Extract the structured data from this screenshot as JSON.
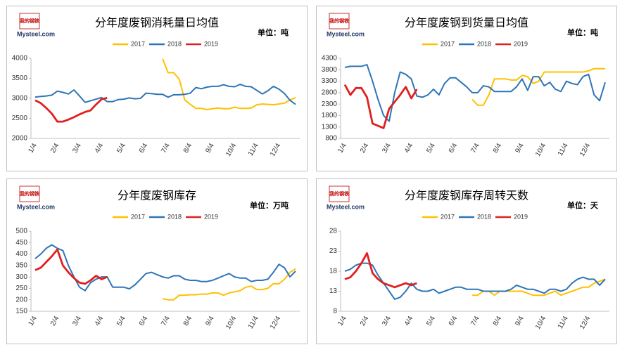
{
  "chart_data": [
    {
      "type": "line",
      "title": "分年度废钢消耗量日均值",
      "unit": "单位：吨",
      "logo_cn": "我的钢铁",
      "logo": "Mysteel.com",
      "categories": [
        "1/4",
        null,
        null,
        null,
        "2/4",
        null,
        null,
        null,
        "3/4",
        null,
        null,
        null,
        "4/4",
        null,
        null,
        null,
        "5/4",
        null,
        null,
        null,
        "6/4",
        null,
        null,
        null,
        "7/4",
        null,
        null,
        null,
        "8/4",
        null,
        null,
        null,
        "9/4",
        null,
        null,
        null,
        "10/4",
        null,
        null,
        null,
        "11/4",
        null,
        null,
        null,
        "12/4",
        null,
        null,
        null
      ],
      "ylim": [
        2000,
        4000
      ],
      "yticks": [
        2000,
        2500,
        3000,
        3500,
        4000
      ],
      "grid": false,
      "series": [
        {
          "name": "2017",
          "color": "#ffc000",
          "values": [
            null,
            null,
            null,
            null,
            null,
            null,
            null,
            null,
            null,
            null,
            null,
            null,
            null,
            null,
            null,
            null,
            null,
            null,
            null,
            null,
            null,
            null,
            null,
            3990,
            3640,
            3640,
            3480,
            2960,
            2850,
            2750,
            2750,
            2720,
            2740,
            2760,
            2740,
            2740,
            2780,
            2750,
            2750,
            2760,
            2840,
            2860,
            2850,
            2840,
            2860,
            2880,
            2960,
            3020
          ]
        },
        {
          "name": "2018",
          "color": "#2e75b6",
          "values": [
            3030,
            3050,
            3060,
            3080,
            3180,
            3150,
            3110,
            3210,
            3060,
            2900,
            2940,
            2980,
            3020,
            2920,
            2920,
            2970,
            2980,
            3010,
            2990,
            3000,
            3130,
            3120,
            3100,
            3100,
            3030,
            3090,
            3090,
            3100,
            3130,
            3270,
            3240,
            3280,
            3300,
            3300,
            3340,
            3300,
            3290,
            3350,
            3300,
            3290,
            3200,
            3110,
            3190,
            3300,
            3230,
            3120,
            2950,
            2850
          ]
        },
        {
          "name": "2019",
          "color": "#e02020",
          "values": [
            2950,
            2880,
            2760,
            2620,
            2420,
            2420,
            2470,
            2530,
            2600,
            2660,
            2700,
            2850,
            2980,
            3010,
            null,
            null,
            null,
            null,
            null,
            null,
            null,
            null,
            null,
            null,
            null,
            null,
            null,
            null,
            null,
            null,
            null,
            null,
            null,
            null,
            null,
            null,
            null,
            null,
            null,
            null,
            null,
            null,
            null,
            null,
            null,
            null,
            null,
            null
          ]
        }
      ]
    },
    {
      "type": "line",
      "title": "分年度废钢到货量日均值",
      "unit": "单位：吨",
      "logo_cn": "我的钢铁",
      "logo": "Mysteel.com",
      "categories": [
        "1/4",
        null,
        null,
        null,
        "2/4",
        null,
        null,
        null,
        "3/4",
        null,
        null,
        null,
        "4/4",
        null,
        null,
        null,
        "5/4",
        null,
        null,
        null,
        "6/4",
        null,
        null,
        null,
        "7/4",
        null,
        null,
        null,
        "8/4",
        null,
        null,
        null,
        "9/4",
        null,
        null,
        null,
        "10/4",
        null,
        null,
        null,
        "11/4",
        null,
        null,
        null,
        "12/4",
        null,
        null,
        null
      ],
      "ylim": [
        800,
        4300
      ],
      "yticks": [
        800,
        1300,
        1800,
        2300,
        2800,
        3300,
        3800,
        4300
      ],
      "grid": false,
      "series": [
        {
          "name": "2017",
          "color": "#ffc000",
          "values": [
            null,
            null,
            null,
            null,
            null,
            null,
            null,
            null,
            null,
            null,
            null,
            null,
            null,
            null,
            null,
            null,
            null,
            null,
            null,
            null,
            null,
            null,
            null,
            2500,
            2250,
            2250,
            2700,
            3400,
            3400,
            3400,
            3350,
            3350,
            3550,
            3500,
            3200,
            3300,
            3700,
            3700,
            3700,
            3700,
            3700,
            3700,
            3700,
            3700,
            3750,
            3850,
            3850,
            3850
          ]
        },
        {
          "name": "2018",
          "color": "#2e75b6",
          "values": [
            3900,
            3950,
            3950,
            3950,
            4020,
            3300,
            2500,
            1800,
            1550,
            2800,
            3700,
            3600,
            3400,
            2650,
            2600,
            2700,
            2950,
            2700,
            3200,
            3450,
            3450,
            3250,
            3050,
            2800,
            2800,
            3100,
            3050,
            2850,
            2850,
            2850,
            2850,
            3050,
            3400,
            2900,
            3500,
            3500,
            3100,
            3250,
            2950,
            2850,
            3300,
            3200,
            3150,
            3500,
            3600,
            2700,
            2450,
            3250
          ]
        },
        {
          "name": "2019",
          "color": "#e02020",
          "values": [
            3150,
            2700,
            3000,
            3000,
            2600,
            1450,
            1350,
            1250,
            2100,
            2400,
            2700,
            3050,
            2550,
            2950,
            null,
            null,
            null,
            null,
            null,
            null,
            null,
            null,
            null,
            null,
            null,
            null,
            null,
            null,
            null,
            null,
            null,
            null,
            null,
            null,
            null,
            null,
            null,
            null,
            null,
            null,
            null,
            null,
            null,
            null,
            null,
            null,
            null,
            null
          ]
        }
      ]
    },
    {
      "type": "line",
      "title": "分年度废钢库存",
      "unit": "单位：万吨",
      "logo_cn": "我的钢铁",
      "logo": "Mysteel.com",
      "categories": [
        "1/4",
        null,
        null,
        null,
        "2/4",
        null,
        null,
        null,
        "3/4",
        null,
        null,
        null,
        "4/4",
        null,
        null,
        null,
        "5/4",
        null,
        null,
        null,
        "6/4",
        null,
        null,
        null,
        "7/4",
        null,
        null,
        null,
        "8/4",
        null,
        null,
        null,
        "9/4",
        null,
        null,
        null,
        "10/4",
        null,
        null,
        null,
        "11/4",
        null,
        null,
        null,
        "12/4",
        null,
        null,
        null
      ],
      "ylim": [
        150,
        500
      ],
      "yticks": [
        150,
        200,
        250,
        300,
        350,
        400,
        450,
        500
      ],
      "grid": false,
      "series": [
        {
          "name": "2017",
          "color": "#ffc000",
          "values": [
            null,
            null,
            null,
            null,
            null,
            null,
            null,
            null,
            null,
            null,
            null,
            null,
            null,
            null,
            null,
            null,
            null,
            null,
            null,
            null,
            null,
            null,
            null,
            205,
            200,
            200,
            220,
            220,
            222,
            222,
            225,
            225,
            230,
            230,
            220,
            230,
            235,
            240,
            255,
            260,
            245,
            245,
            250,
            270,
            270,
            290,
            320,
            335
          ]
        },
        {
          "name": "2018",
          "color": "#2e75b6",
          "values": [
            380,
            400,
            425,
            440,
            425,
            415,
            350,
            300,
            255,
            240,
            275,
            290,
            300,
            300,
            255,
            255,
            255,
            248,
            265,
            290,
            315,
            320,
            310,
            300,
            295,
            305,
            305,
            290,
            285,
            285,
            280,
            280,
            285,
            295,
            305,
            315,
            300,
            295,
            295,
            280,
            285,
            285,
            290,
            320,
            355,
            340,
            300,
            325
          ]
        },
        {
          "name": "2019",
          "color": "#e02020",
          "values": [
            330,
            340,
            365,
            390,
            420,
            350,
            320,
            295,
            275,
            270,
            285,
            305,
            290,
            300,
            null,
            null,
            null,
            null,
            null,
            null,
            null,
            null,
            null,
            null,
            null,
            null,
            null,
            null,
            null,
            null,
            null,
            null,
            null,
            null,
            null,
            null,
            null,
            null,
            null,
            null,
            null,
            null,
            null,
            null,
            null,
            null,
            null,
            null
          ]
        }
      ]
    },
    {
      "type": "line",
      "title": "分年度废钢库存周转天数",
      "unit": "单位：天",
      "logo_cn": "我的钢铁",
      "logo": "Mysteel.com",
      "categories": [
        "1/4",
        null,
        null,
        null,
        "2/4",
        null,
        null,
        null,
        "3/4",
        null,
        null,
        null,
        "4/4",
        null,
        null,
        null,
        "5/4",
        null,
        null,
        null,
        "6/4",
        null,
        null,
        null,
        "7/4",
        null,
        null,
        null,
        "8/4",
        null,
        null,
        null,
        "9/4",
        null,
        null,
        null,
        "10/4",
        null,
        null,
        null,
        "11/4",
        null,
        null,
        null,
        "12/4",
        null,
        null,
        null
      ],
      "ylim": [
        8,
        28
      ],
      "yticks": [
        8,
        13,
        18,
        23,
        28
      ],
      "grid": false,
      "series": [
        {
          "name": "2017",
          "color": "#ffc000",
          "values": [
            null,
            null,
            null,
            null,
            null,
            null,
            null,
            null,
            null,
            null,
            null,
            null,
            null,
            null,
            null,
            null,
            null,
            null,
            null,
            null,
            null,
            null,
            null,
            12,
            12,
            13,
            13,
            12,
            13,
            13,
            13,
            13,
            13,
            12.5,
            12,
            12,
            12,
            12.5,
            13,
            12,
            12.5,
            13,
            13.5,
            14,
            14,
            15,
            15.5,
            16
          ]
        },
        {
          "name": "2018",
          "color": "#2e75b6",
          "values": [
            18,
            18.5,
            19.5,
            20,
            20,
            19.5,
            17,
            15,
            13,
            11,
            11.5,
            13,
            15,
            13.5,
            13,
            13,
            13.5,
            12.5,
            13,
            13.5,
            14,
            14,
            13.5,
            13.5,
            13.5,
            13,
            13,
            13,
            13,
            13,
            13.5,
            14.5,
            14,
            13.5,
            13.5,
            13,
            12.5,
            13.5,
            13.5,
            13,
            13.5,
            15,
            16,
            16.5,
            16,
            16,
            14.5,
            16
          ]
        },
        {
          "name": "2019",
          "color": "#e02020",
          "values": [
            16,
            16.5,
            18,
            20,
            22.5,
            17.5,
            16,
            15,
            14.5,
            14,
            14.5,
            15,
            14.5,
            15,
            null,
            null,
            null,
            null,
            null,
            null,
            null,
            null,
            null,
            null,
            null,
            null,
            null,
            null,
            null,
            null,
            null,
            null,
            null,
            null,
            null,
            null,
            null,
            null,
            null,
            null,
            null,
            null,
            null,
            null,
            null,
            null,
            null,
            null
          ]
        }
      ]
    }
  ]
}
